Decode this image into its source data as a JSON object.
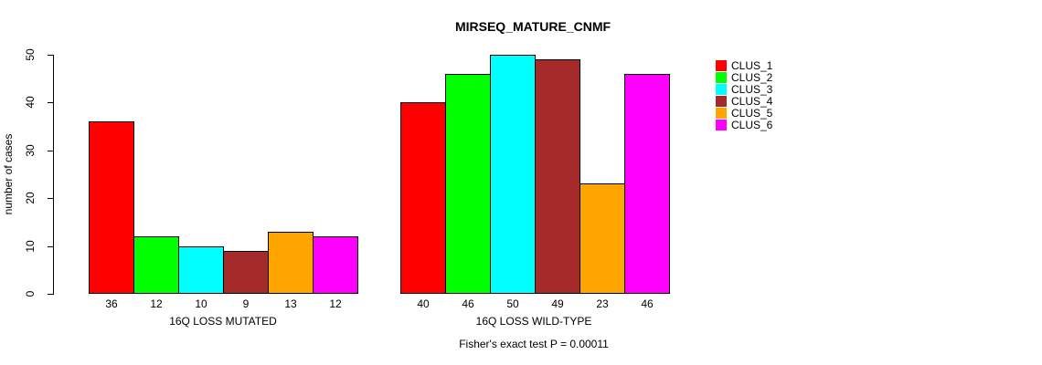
{
  "chart_data": {
    "type": "bar",
    "title": "MIRSEQ_MATURE_CNMF",
    "ylabel": "number of cases",
    "ylim": [
      0,
      50
    ],
    "y_ticks": [
      0,
      10,
      20,
      30,
      40,
      50
    ],
    "grid": false,
    "legend_position": "right",
    "series_labels": [
      "CLUS_1",
      "CLUS_2",
      "CLUS_3",
      "CLUS_4",
      "CLUS_5",
      "CLUS_6"
    ],
    "series_colors": [
      "#ff0000",
      "#00ff00",
      "#00ffff",
      "#a52a2a",
      "#ffa500",
      "#ff00ff"
    ],
    "groups": [
      {
        "label": "16Q LOSS MUTATED",
        "values": [
          36,
          12,
          10,
          9,
          13,
          12
        ]
      },
      {
        "label": "16Q LOSS WILD-TYPE",
        "values": [
          40,
          46,
          50,
          49,
          23,
          46
        ]
      }
    ],
    "bar_value_labels": [
      [
        36,
        12,
        10,
        9,
        13,
        12
      ],
      [
        40,
        46,
        50,
        49,
        23,
        46
      ]
    ],
    "annotation": "Fisher's exact test P = 0.00011"
  }
}
